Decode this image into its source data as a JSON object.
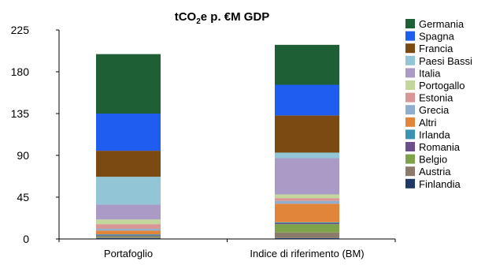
{
  "chart_data": {
    "type": "bar",
    "stacked": true,
    "title_main": "tCO",
    "title_sub": "2",
    "title_rest": "e p. €M GDP",
    "xlabel": "",
    "ylabel": "",
    "ylim": [
      0,
      225
    ],
    "yticks": [
      "0",
      "45",
      "90",
      "135",
      "180",
      "225"
    ],
    "ytick_values": [
      0,
      45,
      90,
      135,
      180,
      225
    ],
    "categories": [
      "Portafoglio",
      "Indice di riferimento (BM)"
    ],
    "grid": false,
    "legend_position": "right",
    "series": [
      {
        "name": "Finlandia",
        "color": "#1f3864",
        "values": [
          1,
          1
        ]
      },
      {
        "name": "Austria",
        "color": "#8c7b6b",
        "values": [
          1,
          6
        ]
      },
      {
        "name": "Belgio",
        "color": "#7fa34a",
        "values": [
          1,
          9
        ]
      },
      {
        "name": "Romania",
        "color": "#6b4e8c",
        "values": [
          1,
          1
        ]
      },
      {
        "name": "Irlanda",
        "color": "#3a93b0",
        "values": [
          1,
          1
        ]
      },
      {
        "name": "Altri",
        "color": "#e0853a",
        "values": [
          4,
          20
        ]
      },
      {
        "name": "Grecia",
        "color": "#8faecf",
        "values": [
          2,
          3
        ]
      },
      {
        "name": "Estonia",
        "color": "#d99694",
        "values": [
          5,
          3
        ]
      },
      {
        "name": "Portogallo",
        "color": "#c3d69b",
        "values": [
          5,
          4
        ]
      },
      {
        "name": "Italia",
        "color": "#a99bc5",
        "values": [
          16,
          39
        ]
      },
      {
        "name": "Paesi Bassi",
        "color": "#92c5d5",
        "values": [
          30,
          6
        ]
      },
      {
        "name": "Francia",
        "color": "#7b4a12",
        "values": [
          28,
          40
        ]
      },
      {
        "name": "Spagna",
        "color": "#1f5cf0",
        "values": [
          40,
          33
        ]
      },
      {
        "name": "Germania",
        "color": "#1f5f35",
        "values": [
          64,
          43
        ]
      }
    ]
  }
}
